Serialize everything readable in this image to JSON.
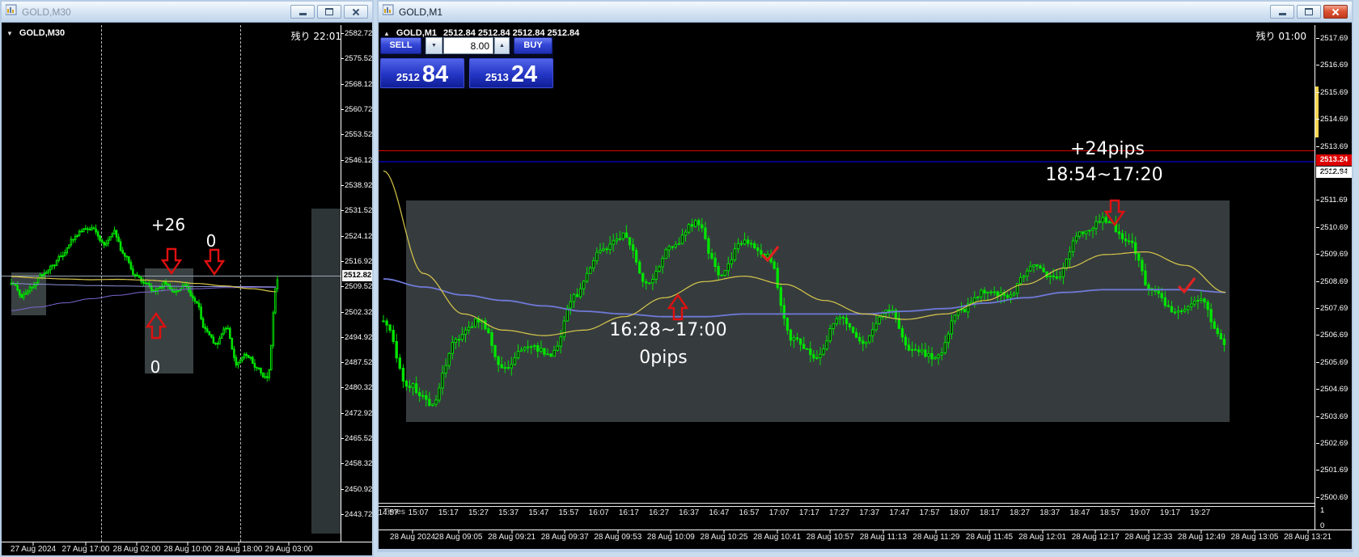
{
  "colors": {
    "candle": "#00e400",
    "ma_yellow": "#d9c84a",
    "ma_blue": "#6f79d8",
    "ma_slate": "#8a93d6",
    "ma_violet": "#7d66d2",
    "ask_line": "#dd0000",
    "bid_line": "#000080",
    "arrow": "#e01010",
    "mdi_background": "#c9dcee"
  },
  "left_window": {
    "title": "GOLD,M30",
    "chart": {
      "symbol": "GOLD,M30",
      "countdown": "残り 22:01",
      "current_price": "2512.82",
      "price_labels": [
        "2582.72",
        "2575.52",
        "2568.12",
        "2560.72",
        "2553.52",
        "2546.12",
        "2538.92",
        "2531.52",
        "2524.12",
        "2516.92",
        "2509.52",
        "2502.32",
        "2494.92",
        "2487.52",
        "2480.32",
        "2472.92",
        "2465.52",
        "2458.32",
        "2450.92",
        "2443.72"
      ],
      "time_labels": [
        "27 Aug 2024",
        "27 Aug 17:00",
        "28 Aug 02:00",
        "28 Aug 10:00",
        "28 Aug 18:00",
        "29 Aug 03:00"
      ],
      "ann": {
        "gain": "+26",
        "flat": "0",
        "entry": "0"
      }
    }
  },
  "right_window": {
    "title": "GOLD,M1",
    "ohlc": {
      "symbol": "GOLD,M1",
      "values": "2512.84 2512.84 2512.84 2512.84"
    },
    "countdown": "残り 01:00",
    "trade_panel": {
      "sell_label": "SELL",
      "buy_label": "BUY",
      "volume": "8.00",
      "sell_small": "2512",
      "sell_big": "84",
      "buy_small": "2513",
      "buy_big": "24"
    },
    "ask_price": "2513.24",
    "bid_price": "2512.84",
    "price_labels": [
      "2517.69",
      "2516.69",
      "2515.69",
      "2514.69",
      "2513.69",
      "2512.69",
      "2511.69",
      "2510.69",
      "2509.69",
      "2508.69",
      "2507.69",
      "2506.69",
      "2505.69",
      "2504.69",
      "2503.69",
      "2502.69",
      "2501.69",
      "2500.69"
    ],
    "sub_window": {
      "label": "Times",
      "max": "1",
      "min": "0",
      "time_labels": [
        "14:57",
        "15:07",
        "15:17",
        "15:27",
        "15:37",
        "15:47",
        "15:57",
        "16:07",
        "16:17",
        "16:27",
        "16:37",
        "16:47",
        "16:57",
        "17:07",
        "17:17",
        "17:27",
        "17:37",
        "17:47",
        "17:57",
        "18:07",
        "18:17",
        "18:27",
        "18:37",
        "18:47",
        "18:57",
        "19:07",
        "19:17",
        "19:27"
      ]
    },
    "date_labels": [
      "28 Aug 2024",
      "28 Aug 09:05",
      "28 Aug 09:21",
      "28 Aug 09:37",
      "28 Aug 09:53",
      "28 Aug 10:09",
      "28 Aug 10:25",
      "28 Aug 10:41",
      "28 Aug 10:57",
      "28 Aug 11:13",
      "28 Aug 11:29",
      "28 Aug 11:45",
      "28 Aug 12:01",
      "28 Aug 12:17",
      "28 Aug 12:33",
      "28 Aug 12:49",
      "28 Aug 13:05",
      "28 Aug 13:21"
    ],
    "ann": {
      "gain": "+24pips",
      "trade1_time": "18:54~17:20",
      "trade2_time": "16:28~17:00",
      "trade2_result": "0pips"
    }
  },
  "chart_data": [
    {
      "type": "candlestick",
      "symbol": "GOLD,M30",
      "timeframe": "M30",
      "candles": [
        2511.0,
        2507.0,
        2509.5,
        2513.0,
        2515.5,
        2519.0,
        2523.5,
        2526.0,
        2526.5,
        2522.0,
        2525.5,
        2519.0,
        2513.5,
        2511.0,
        2508.5,
        2510.5,
        2508.0,
        2510.0,
        2505.5,
        2497.0,
        2493.0,
        2498.0,
        2487.5,
        2490.0,
        2486.0,
        2483.0,
        2512.0
      ],
      "ma_yellow": [
        2512.6,
        2512.2,
        2511.9,
        2511.7,
        2511.8,
        2511.6,
        2511.2,
        2510.6,
        2509.9,
        2509.1,
        2508.2
      ],
      "ma_slate": [
        2510.6,
        2510.4,
        2510.2,
        2510.0,
        2509.9,
        2509.8,
        2509.8,
        2509.7,
        2509.7,
        2509.7,
        2509.6
      ],
      "ma_violet": [
        2502.8,
        2503.8,
        2505.0,
        2506.2,
        2507.2,
        2508.1,
        2508.7,
        2509.1,
        2509.4,
        2509.5,
        2509.5
      ]
    },
    {
      "type": "candlestick",
      "symbol": "GOLD,M1",
      "timeframe": "M1",
      "candles": [
        2507.3,
        2504.9,
        2504.2,
        2506.5,
        2507.3,
        2505.5,
        2506.3,
        2506.0,
        2508.2,
        2509.8,
        2510.4,
        2508.6,
        2510.0,
        2510.9,
        2509.0,
        2510.2,
        2509.6,
        2506.6,
        2505.9,
        2507.4,
        2506.5,
        2507.7,
        2506.2,
        2505.9,
        2507.6,
        2508.3,
        2508.2,
        2509.3,
        2508.8,
        2510.5,
        2511.0,
        2510.2,
        2508.3,
        2507.5,
        2508.0,
        2506.4
      ],
      "ma_yellow": [
        2512.8,
        2509.0,
        2507.5,
        2506.9,
        2506.7,
        2506.9,
        2507.4,
        2508.1,
        2508.7,
        2508.9,
        2508.6,
        2508.0,
        2507.5,
        2507.3,
        2507.5,
        2508.0,
        2508.6,
        2509.2,
        2509.7,
        2509.8,
        2509.3,
        2508.3
      ],
      "ma_blue": [
        2508.8,
        2508.5,
        2508.2,
        2508.0,
        2507.8,
        2507.6,
        2507.5,
        2507.4,
        2507.4,
        2507.5,
        2507.5,
        2507.5,
        2507.5,
        2507.6,
        2507.7,
        2507.9,
        2508.1,
        2508.3,
        2508.4,
        2508.4,
        2508.4,
        2508.3
      ]
    }
  ]
}
